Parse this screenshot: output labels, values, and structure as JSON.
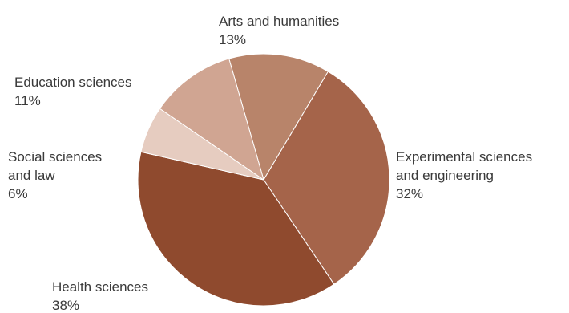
{
  "chart_data": {
    "type": "pie",
    "title": "",
    "slices": [
      {
        "label": "Arts and humanities",
        "value": 13,
        "value_label": "13%",
        "color": "#b8846a"
      },
      {
        "label": "Experimental sciences and engineering",
        "value": 32,
        "value_label": "32%",
        "color": "#a5644a"
      },
      {
        "label": "Health sciences",
        "value": 38,
        "value_label": "38%",
        "color": "#8f4a2e"
      },
      {
        "label": "Social sciences and law",
        "value": 6,
        "value_label": "6%",
        "color": "#e6ccc0"
      },
      {
        "label": "Education sciences",
        "value": 11,
        "value_label": "11%",
        "color": "#d0a592"
      }
    ]
  },
  "labels": [
    {
      "lines": [
        "Arts and humanities",
        "13%"
      ]
    },
    {
      "lines": [
        "Experimental sciences",
        "and engineering",
        "32%"
      ]
    },
    {
      "lines": [
        "Health sciences",
        "38%"
      ]
    },
    {
      "lines": [
        "Social sciences",
        "and law",
        "6%"
      ]
    },
    {
      "lines": [
        "Education sciences",
        "11%"
      ]
    }
  ]
}
